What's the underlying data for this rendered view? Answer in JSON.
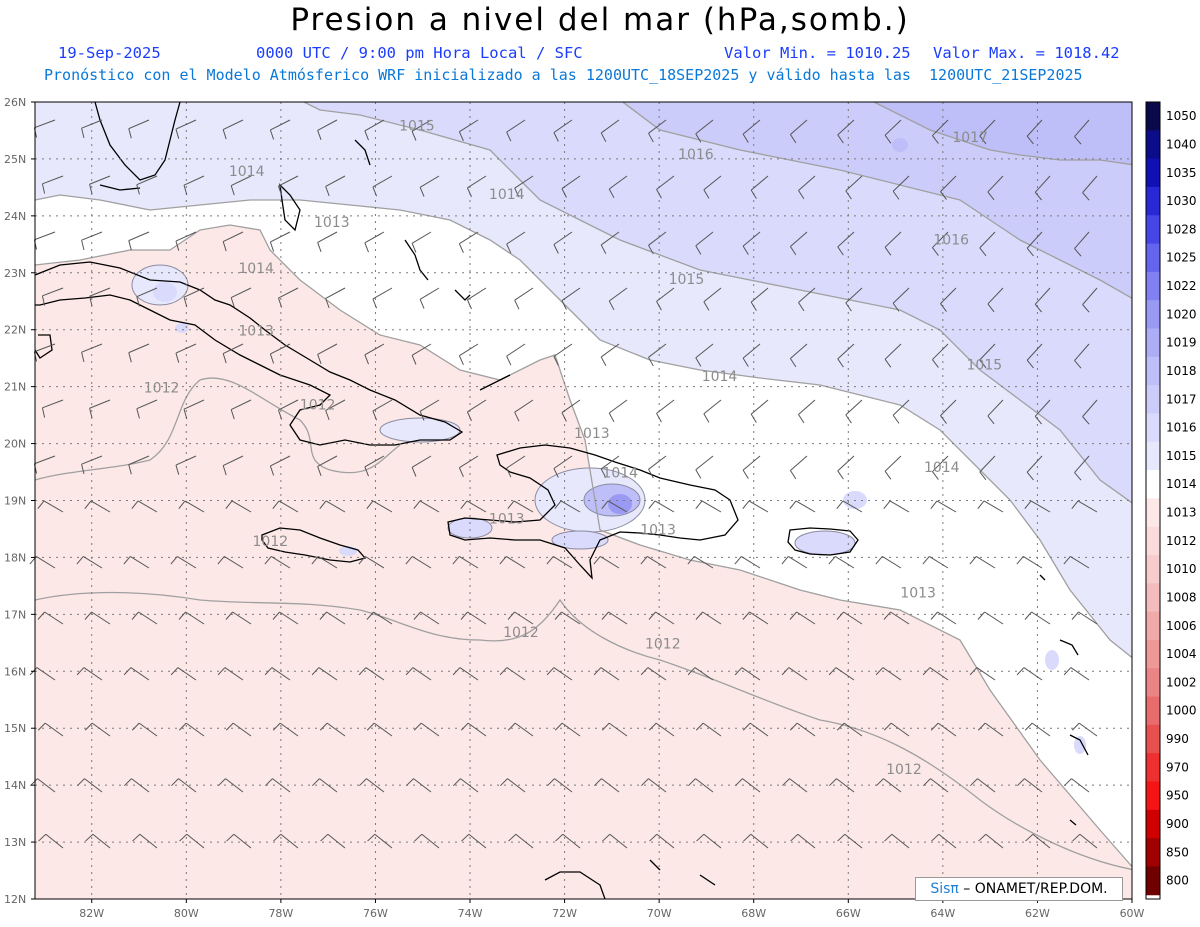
{
  "header": {
    "title": "Presion a nivel del mar (hPa,somb.)",
    "date": "19-Sep-2025",
    "time_info": "0000 UTC / 9:00 pm Hora Local / SFC",
    "valor_min": "Valor Min. = 1010.25",
    "valor_max": "Valor Max. = 1018.42",
    "forecast_info": "Pronóstico con el Modelo Atmósferico WRF inicializado a las 1200UTC_18SEP2025 y válido hasta las  1200UTC_21SEP2025"
  },
  "map": {
    "lat_labels": [
      "26N",
      "25N",
      "24N",
      "23N",
      "22N",
      "21N",
      "20N",
      "19N",
      "18N",
      "17N",
      "16N",
      "15N",
      "14N",
      "13N",
      "12N"
    ],
    "lon_labels": [
      "82W",
      "80W",
      "78W",
      "76W",
      "74W",
      "72W",
      "70W",
      "68W",
      "66W",
      "64W",
      "62W",
      "60W"
    ],
    "lat_range": [
      12,
      26
    ],
    "lon_range": [
      -83.2,
      -60
    ],
    "contour_labels": [
      {
        "text": "1015",
        "lon": -75.5,
        "lat": 25.5
      },
      {
        "text": "1014",
        "lon": -79.1,
        "lat": 24.7
      },
      {
        "text": "1014",
        "lon": -73.6,
        "lat": 24.3
      },
      {
        "text": "1013",
        "lon": -77.3,
        "lat": 23.8
      },
      {
        "text": "1014",
        "lon": -78.9,
        "lat": 23.0
      },
      {
        "text": "1013",
        "lon": -78.9,
        "lat": 21.9
      },
      {
        "text": "1012",
        "lon": -80.9,
        "lat": 20.9
      },
      {
        "text": "1012",
        "lon": -77.6,
        "lat": 20.6
      },
      {
        "text": "1016",
        "lon": -69.6,
        "lat": 25.0
      },
      {
        "text": "1017",
        "lon": -63.8,
        "lat": 25.3
      },
      {
        "text": "1016",
        "lon": -64.2,
        "lat": 23.5
      },
      {
        "text": "1015",
        "lon": -69.8,
        "lat": 22.8
      },
      {
        "text": "1015",
        "lon": -63.5,
        "lat": 21.3
      },
      {
        "text": "1014",
        "lon": -69.1,
        "lat": 21.1
      },
      {
        "text": "1014",
        "lon": -64.4,
        "lat": 19.5
      },
      {
        "text": "1013",
        "lon": -71.8,
        "lat": 20.1
      },
      {
        "text": "1014",
        "lon": -71.2,
        "lat": 19.4
      },
      {
        "text": "1013",
        "lon": -73.6,
        "lat": 18.6
      },
      {
        "text": "1013",
        "lon": -70.4,
        "lat": 18.4
      },
      {
        "text": "1012",
        "lon": -78.6,
        "lat": 18.2
      },
      {
        "text": "1013",
        "lon": -64.9,
        "lat": 17.3
      },
      {
        "text": "1012",
        "lon": -73.3,
        "lat": 16.6
      },
      {
        "text": "1012",
        "lon": -70.3,
        "lat": 16.4
      },
      {
        "text": "1012",
        "lon": -65.2,
        "lat": 14.2
      }
    ]
  },
  "colorbar": {
    "labels": [
      "1050",
      "1040",
      "1035",
      "1030",
      "1028",
      "1025",
      "1022",
      "1020",
      "1019",
      "1018",
      "1017",
      "1016",
      "1015",
      "1014",
      "1013",
      "1012",
      "1010",
      "1008",
      "1006",
      "1004",
      "1002",
      "1000",
      "990",
      "970",
      "950",
      "900",
      "850",
      "800"
    ],
    "colors": [
      "#0a0a4a",
      "#0c0c8a",
      "#1010b4",
      "#2828d6",
      "#4646e6",
      "#6464ee",
      "#8080f2",
      "#9a9af4",
      "#adadf6",
      "#bebef8",
      "#ccccfa",
      "#dadafc",
      "#e8e8fd",
      "#ffffff",
      "#fde8e8",
      "#fadada",
      "#f7cccc",
      "#f4bcbc",
      "#f1aaaa",
      "#ee9898",
      "#eb8484",
      "#e86c6c",
      "#e85050",
      "#ee3030",
      "#f41414",
      "#d00000",
      "#a00000",
      "#700000"
    ]
  },
  "credit": {
    "brand": "Sisπ",
    "text": " – ONAMET/REP.DOM."
  }
}
